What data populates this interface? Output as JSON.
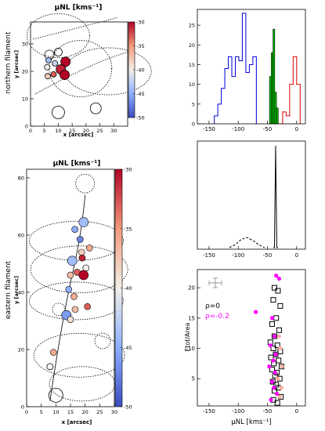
{
  "chart_data": [
    {
      "type": "scatter",
      "panel": "northern filament map",
      "title": "μNL [kms⁻¹]",
      "side_label": "northern filament",
      "xlabel": "x [arcsec]",
      "ylabel": "y [arcsec]",
      "xlim": [
        0,
        35
      ],
      "ylim": [
        0,
        38
      ],
      "xticks": [
        "0",
        "5",
        "10",
        "15",
        "20",
        "25",
        "30"
      ],
      "yticks": [
        "0",
        "10",
        "20",
        "30"
      ],
      "colorbar": {
        "min": -50,
        "max": -30,
        "ticks": [
          "-50",
          "-45",
          "-40",
          "-35",
          "-30"
        ]
      },
      "clumps": [
        {
          "x": 12.6,
          "y": 23.5,
          "v": -30
        },
        {
          "x": 10.9,
          "y": 20.7,
          "v": -31
        },
        {
          "x": 12.3,
          "y": 18.7,
          "v": -30
        },
        {
          "x": 8.3,
          "y": 18.9,
          "v": -33
        },
        {
          "x": 6.2,
          "y": 18.2,
          "v": -38
        },
        {
          "x": 8.8,
          "y": 22.9,
          "v": -42
        },
        {
          "x": 6.0,
          "y": 21.5,
          "v": -40
        },
        {
          "x": 6.5,
          "y": 24.0,
          "v": -44
        }
      ]
    },
    {
      "type": "bar",
      "panel": "velocity histogram",
      "xlim": [
        -170,
        15
      ],
      "ylim": [
        0,
        29
      ],
      "xticks": [
        "-150",
        "-100",
        "-50",
        "0"
      ],
      "yticks": [
        "0",
        "5",
        "10",
        "15",
        "20",
        "25"
      ],
      "series": [
        {
          "color": "#0000dd",
          "x": [
            -138,
            -132,
            -126,
            -120,
            -114,
            -108,
            -102,
            -96,
            -90,
            -84,
            -78,
            -72
          ],
          "values": [
            2,
            5,
            9,
            14,
            17,
            12,
            17,
            16,
            28,
            13,
            15,
            17
          ]
        },
        {
          "color": "#00bb00",
          "x": [
            -45,
            -42,
            -39,
            -36,
            -33
          ],
          "values": [
            12,
            18,
            24,
            8,
            4
          ]
        },
        {
          "color": "#dd0000",
          "x": [
            -27,
            -21,
            -15,
            -9,
            -3,
            3
          ],
          "values": [
            0,
            3,
            2,
            10,
            17,
            10
          ]
        }
      ]
    },
    {
      "type": "line",
      "panel": "velocity profile",
      "xlim": [
        -170,
        15
      ],
      "xticks": [
        "-150",
        "-100",
        "-50",
        "0"
      ],
      "series": [
        {
          "style": "solid",
          "x": [
            -40,
            -38,
            -37,
            -36,
            -35,
            -34,
            -32
          ],
          "y": [
            0,
            0,
            0.5,
            1,
            0.5,
            0,
            0
          ]
        },
        {
          "style": "dashed",
          "x": [
            -115,
            -105,
            -95,
            -85,
            -75,
            -65,
            -55
          ],
          "y": [
            0,
            0.03,
            0.08,
            0.1,
            0.07,
            0.03,
            0
          ]
        }
      ]
    },
    {
      "type": "scatter",
      "panel": "flux density vs velocity",
      "xlabel": "μNL [kms⁻¹]",
      "ylabel": "Ftot/Area",
      "xlim": [
        -170,
        15
      ],
      "ylim": [
        0.5,
        23
      ],
      "xticks": [
        "-150",
        "-100",
        "-50",
        "0"
      ],
      "yticks": [
        "5",
        "10",
        "15",
        "20"
      ],
      "legend": [
        {
          "text": "ρ=0",
          "color": "#000000"
        },
        {
          "text": "ρ=-0.2",
          "color": "#ff00ff"
        }
      ],
      "series": [
        {
          "marker": "open-square",
          "color": "#000000",
          "points": [
            [
              -38,
              20
            ],
            [
              -32,
              19.5
            ],
            [
              -40,
              18
            ],
            [
              -28,
              17
            ],
            [
              -35,
              15
            ],
            [
              -42,
              14
            ],
            [
              -30,
              13
            ],
            [
              -38,
              12
            ],
            [
              -45,
              11
            ],
            [
              -33,
              10.5
            ],
            [
              -40,
              10
            ],
            [
              -28,
              9.5
            ],
            [
              -36,
              9
            ],
            [
              -44,
              8.5
            ],
            [
              -31,
              8
            ],
            [
              -39,
              7.5
            ],
            [
              -26,
              7
            ],
            [
              -42,
              6.5
            ],
            [
              -34,
              6
            ],
            [
              -37,
              5.5
            ],
            [
              -29,
              5
            ],
            [
              -41,
              4.5
            ],
            [
              -35,
              4
            ],
            [
              -32,
              3.5
            ],
            [
              -38,
              3
            ],
            [
              -27,
              2
            ],
            [
              -40,
              1.5
            ],
            [
              -33,
              1
            ]
          ]
        },
        {
          "marker": "filled-circle",
          "color": "#ff00ff",
          "points": [
            [
              -35,
              22
            ],
            [
              -30,
              21.5
            ],
            [
              -70,
              16
            ],
            [
              -42,
              15
            ],
            [
              -38,
              12
            ],
            [
              -45,
              10.5
            ],
            [
              -36,
              9
            ],
            [
              -40,
              8
            ],
            [
              -47,
              7
            ],
            [
              -37,
              6
            ],
            [
              -42,
              4.5
            ],
            [
              -39,
              3.5
            ],
            [
              -34,
              2.5
            ],
            [
              -44,
              1.5
            ]
          ]
        },
        {
          "marker": "filled-circle",
          "color": "#ffb0a0",
          "points": [
            [
              -30,
              12
            ],
            [
              -28,
              10
            ],
            [
              -25,
              7
            ],
            [
              -32,
              5
            ],
            [
              -26,
              3.5
            ],
            [
              -29,
              2
            ]
          ]
        }
      ]
    },
    {
      "type": "scatter",
      "panel": "eastern filament map",
      "title": "μNL [kms⁻¹]",
      "side_label": "eastern filament",
      "xlabel": "x [arcsec]",
      "ylabel": "y [arcsec]",
      "xlim": [
        0,
        30
      ],
      "ylim": [
        0,
        83
      ],
      "xticks": [
        "0",
        "5",
        "10",
        "15",
        "20",
        "25",
        "30"
      ],
      "yticks": [
        "0",
        "20",
        "40",
        "60",
        "80"
      ],
      "colorbar": {
        "min": -50,
        "max": -30,
        "ticks": [
          "-50",
          "-45",
          "-40",
          "-35",
          "-30"
        ]
      },
      "clumps": [
        {
          "x": 19.5,
          "y": 64.5,
          "v": -44
        },
        {
          "x": 16.5,
          "y": 62.0,
          "v": -45
        },
        {
          "x": 18.3,
          "y": 58.5,
          "v": -47
        },
        {
          "x": 21.5,
          "y": 55.5,
          "v": -36
        },
        {
          "x": 18.8,
          "y": 54.0,
          "v": -38
        },
        {
          "x": 15.6,
          "y": 51.0,
          "v": -44
        },
        {
          "x": 19.0,
          "y": 52.0,
          "v": -31
        },
        {
          "x": 20.3,
          "y": 48.5,
          "v": -40
        },
        {
          "x": 17.3,
          "y": 47.0,
          "v": -33
        },
        {
          "x": 15.0,
          "y": 46.0,
          "v": -37
        },
        {
          "x": 19.5,
          "y": 46.0,
          "v": -30
        },
        {
          "x": 14.4,
          "y": 41.0,
          "v": -45
        },
        {
          "x": 16.2,
          "y": 38.5,
          "v": -36
        },
        {
          "x": 20.8,
          "y": 35.0,
          "v": -33
        },
        {
          "x": 16.6,
          "y": 34.0,
          "v": -37
        },
        {
          "x": 13.6,
          "y": 32.0,
          "v": -46
        },
        {
          "x": 15.0,
          "y": 30.5,
          "v": -39
        },
        {
          "x": 9.2,
          "y": 19.0,
          "v": -36
        }
      ]
    }
  ]
}
